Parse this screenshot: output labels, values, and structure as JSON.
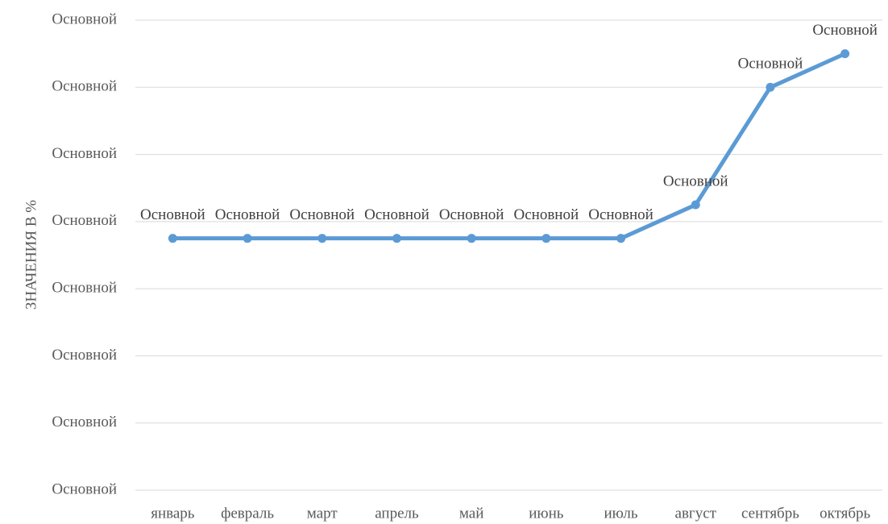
{
  "chart_data": {
    "type": "line",
    "y_label": "ЗНАЧЕНИЯ В %",
    "categories": [
      "январь",
      "февраль",
      "март",
      "апрель",
      "май",
      "июнь",
      "июль",
      "август",
      "сентябрь",
      "октябрь"
    ],
    "series": [
      {
        "color": "#5b9bd5",
        "values": [
          3.75,
          3.75,
          3.75,
          3.75,
          3.75,
          3.75,
          3.75,
          4.25,
          6,
          6.5
        ],
        "value_labels": [
          "Основной",
          "Основной",
          "Основной",
          "Основной",
          "Основной",
          "Основной",
          "Основной",
          "Основной",
          "Основной",
          "Основной"
        ]
      }
    ],
    "ylim": [
      0,
      7
    ],
    "yticks": [
      {
        "value": 0,
        "label": "Основной"
      },
      {
        "value": 1,
        "label": "Основной"
      },
      {
        "value": 2,
        "label": "Основной"
      },
      {
        "value": 3,
        "label": "Основной"
      },
      {
        "value": 4,
        "label": "Основной"
      },
      {
        "value": 5,
        "label": "Основной"
      },
      {
        "value": 6,
        "label": "Основной"
      },
      {
        "value": 7,
        "label": "Основной"
      }
    ],
    "grid": true
  }
}
